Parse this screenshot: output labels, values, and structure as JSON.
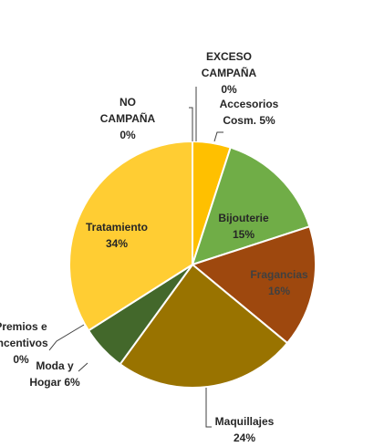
{
  "chart_data": {
    "type": "pie",
    "slices": [
      {
        "id": "exceso-campana",
        "label": [
          "EXCESO",
          "CAMPAÑA",
          "0%"
        ],
        "value": 0,
        "color": "#ffc000",
        "text_color": "#262626"
      },
      {
        "id": "accesorios",
        "label": [
          "Accesorios",
          "Cosm. 5%"
        ],
        "value": 5,
        "color": "#ffc000",
        "text_color": "#262626"
      },
      {
        "id": "bijouterie",
        "label": [
          "Bijouterie",
          "15%"
        ],
        "value": 15,
        "color": "#70ad47",
        "text_color": "#262626"
      },
      {
        "id": "fragancias",
        "label": [
          "Fragancias",
          "16%"
        ],
        "value": 16,
        "color": "#9e480e",
        "text_color": "#404040"
      },
      {
        "id": "maquillajes",
        "label": [
          "Maquillajes",
          "24%"
        ],
        "value": 24,
        "color": "#997300",
        "text_color": "#262626"
      },
      {
        "id": "moda-hogar",
        "label": [
          "Moda y",
          "Hogar 6%"
        ],
        "value": 6,
        "color": "#43682b",
        "text_color": "#262626"
      },
      {
        "id": "premios-incentivos",
        "label": [
          "Premios e",
          "Incentivos",
          "0%"
        ],
        "value": 0,
        "color": "#ffd966",
        "text_color": "#262626"
      },
      {
        "id": "tratamiento",
        "label": [
          "Tratamiento",
          "34%"
        ],
        "value": 34,
        "color": "#ffcd33",
        "text_color": "#262626"
      },
      {
        "id": "no-campana",
        "label": [
          "NO",
          "CAMPAÑA",
          "0%"
        ],
        "value": 0,
        "color": "#ffc000",
        "text_color": "#262626"
      }
    ]
  }
}
